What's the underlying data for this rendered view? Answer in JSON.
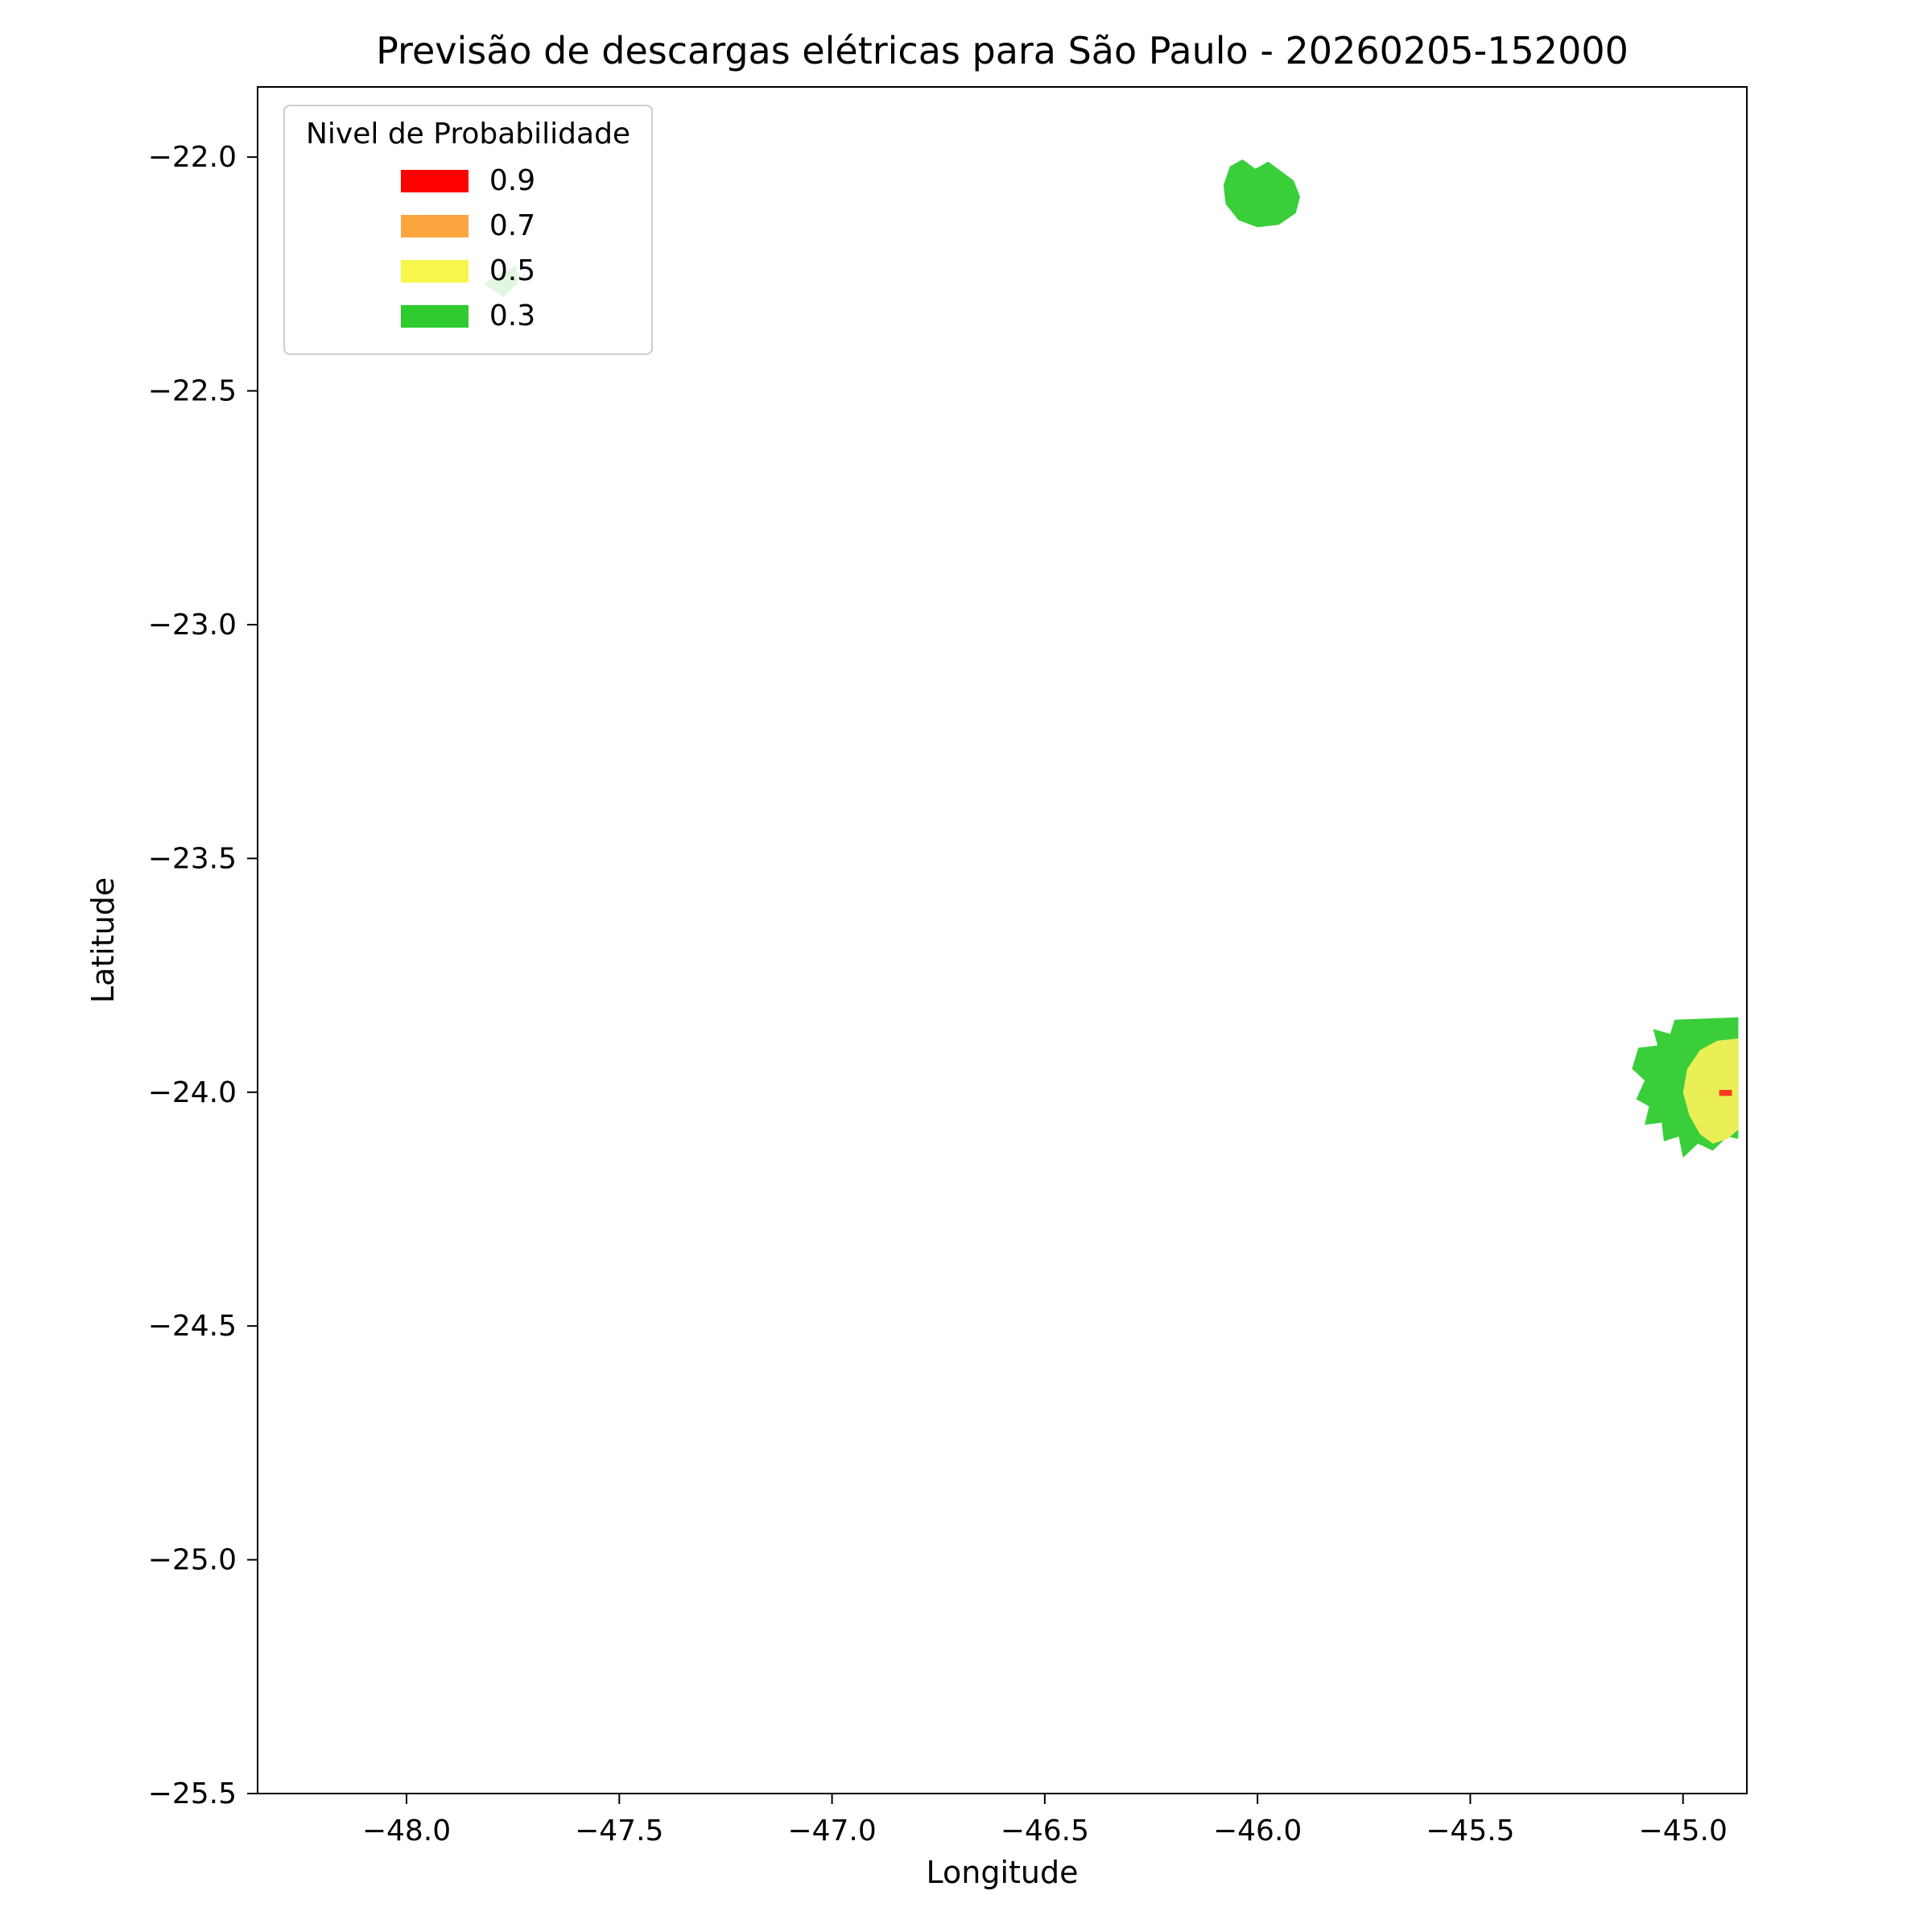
{
  "chart_data": {
    "type": "contour",
    "title": "Previsão de descargas elétricas para São Paulo - 20260205-152000",
    "xlabel": "Longitude",
    "ylabel": "Latitude",
    "xlim": [
      -48.35,
      -44.85
    ],
    "ylim": [
      -25.5,
      -21.85
    ],
    "xticks": [
      -48.0,
      -47.5,
      -47.0,
      -46.5,
      -46.0,
      -45.5,
      -45.0
    ],
    "yticks": [
      -22.0,
      -22.5,
      -23.0,
      -23.5,
      -24.0,
      -24.5,
      -25.0,
      -25.5
    ],
    "grid": false,
    "legend": {
      "title": "Nivel de Probabilidade",
      "position": "upper-left",
      "entries": [
        {
          "label": "0.9",
          "level": 0.9,
          "color": "#ff0000"
        },
        {
          "label": "0.7",
          "level": 0.7,
          "color": "#fca43d"
        },
        {
          "label": "0.5",
          "level": 0.5,
          "color": "#f7f74b"
        },
        {
          "label": "0.3",
          "level": 0.3,
          "color": "#2ecc2e"
        }
      ]
    },
    "regions": [
      {
        "name": "artifact-near-legend-p03-faint",
        "level": 0.3,
        "color": "#63d063",
        "opacity": 0.85,
        "points": [
          [
            -47.82,
            -22.27
          ],
          [
            -47.742,
            -22.232
          ],
          [
            -47.738,
            -22.268
          ],
          [
            -47.772,
            -22.3
          ]
        ]
      },
      {
        "name": "north-cell-p03",
        "level": 0.3,
        "color": "#3ace3a",
        "opacity": 1,
        "points": [
          [
            -46.065,
            -22.02
          ],
          [
            -46.035,
            -22.005
          ],
          [
            -46.005,
            -22.025
          ],
          [
            -45.975,
            -22.01
          ],
          [
            -45.945,
            -22.03
          ],
          [
            -45.915,
            -22.05
          ],
          [
            -45.9,
            -22.085
          ],
          [
            -45.91,
            -22.12
          ],
          [
            -45.95,
            -22.145
          ],
          [
            -46.0,
            -22.15
          ],
          [
            -46.045,
            -22.135
          ],
          [
            -46.075,
            -22.1
          ],
          [
            -46.08,
            -22.06
          ]
        ]
      },
      {
        "name": "east-cell-p03-outer",
        "level": 0.3,
        "color": "#3ace3a",
        "opacity": 1,
        "points": [
          [
            -44.87,
            -23.84
          ],
          [
            -45.02,
            -23.845
          ],
          [
            -45.03,
            -23.875
          ],
          [
            -45.07,
            -23.865
          ],
          [
            -45.06,
            -23.9
          ],
          [
            -45.105,
            -23.905
          ],
          [
            -45.12,
            -23.95
          ],
          [
            -45.09,
            -23.975
          ],
          [
            -45.11,
            -24.015
          ],
          [
            -45.08,
            -24.03
          ],
          [
            -45.09,
            -24.07
          ],
          [
            -45.05,
            -24.065
          ],
          [
            -45.045,
            -24.105
          ],
          [
            -45.01,
            -24.095
          ],
          [
            -45.0,
            -24.14
          ],
          [
            -44.965,
            -24.11
          ],
          [
            -44.93,
            -24.125
          ],
          [
            -44.895,
            -24.095
          ],
          [
            -44.87,
            -24.1
          ]
        ]
      },
      {
        "name": "east-cell-p05-inner",
        "level": 0.5,
        "color": "#e9ef55",
        "opacity": 1,
        "points": [
          [
            -44.87,
            -23.885
          ],
          [
            -44.92,
            -23.89
          ],
          [
            -44.96,
            -23.91
          ],
          [
            -44.99,
            -23.95
          ],
          [
            -45.0,
            -24.0
          ],
          [
            -44.985,
            -24.05
          ],
          [
            -44.96,
            -24.09
          ],
          [
            -44.93,
            -24.11
          ],
          [
            -44.895,
            -24.1
          ],
          [
            -44.87,
            -24.08
          ]
        ]
      },
      {
        "name": "east-cell-high-speck",
        "level": 0.9,
        "color": "#ff3b1f",
        "opacity": 1,
        "points": [
          [
            -44.915,
            -23.995
          ],
          [
            -44.885,
            -23.995
          ],
          [
            -44.885,
            -24.008
          ],
          [
            -44.915,
            -24.008
          ]
        ]
      }
    ]
  }
}
